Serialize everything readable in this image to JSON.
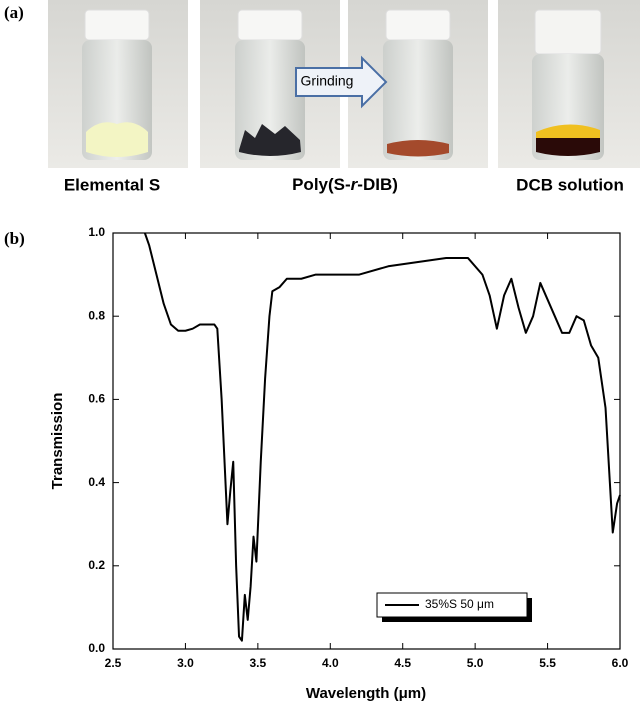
{
  "panel_a": {
    "label": "(a)",
    "arrow_text": "Grinding",
    "captions": {
      "elemental": "Elemental S",
      "polymer": [
        "Poly(S-",
        "r",
        "-DIB)"
      ],
      "solution": "DCB solution"
    }
  },
  "panel_b": {
    "label": "(b)"
  },
  "chart_data": {
    "type": "line",
    "x_label": "Wavelength (μm)",
    "y_label": "Transmission",
    "x": [
      2.72,
      2.75,
      2.8,
      2.85,
      2.9,
      2.95,
      3.0,
      3.05,
      3.1,
      3.15,
      3.2,
      3.22,
      3.25,
      3.27,
      3.29,
      3.31,
      3.33,
      3.35,
      3.37,
      3.39,
      3.41,
      3.43,
      3.45,
      3.47,
      3.49,
      3.52,
      3.55,
      3.58,
      3.6,
      3.65,
      3.7,
      3.8,
      3.9,
      4.0,
      4.2,
      4.4,
      4.6,
      4.8,
      4.95,
      5.05,
      5.1,
      5.15,
      5.2,
      5.25,
      5.3,
      5.35,
      5.4,
      5.45,
      5.5,
      5.55,
      5.6,
      5.65,
      5.7,
      5.75,
      5.8,
      5.85,
      5.9,
      5.93,
      5.95,
      5.98,
      6.0
    ],
    "series": [
      {
        "name": "35%S 50 μm",
        "color": "#000000",
        "values": [
          1.0,
          0.97,
          0.9,
          0.83,
          0.78,
          0.765,
          0.765,
          0.77,
          0.78,
          0.78,
          0.78,
          0.77,
          0.6,
          0.45,
          0.3,
          0.38,
          0.45,
          0.2,
          0.03,
          0.02,
          0.13,
          0.07,
          0.15,
          0.27,
          0.21,
          0.45,
          0.65,
          0.8,
          0.86,
          0.87,
          0.89,
          0.89,
          0.9,
          0.9,
          0.9,
          0.92,
          0.93,
          0.94,
          0.94,
          0.9,
          0.85,
          0.77,
          0.85,
          0.89,
          0.82,
          0.76,
          0.8,
          0.88,
          0.84,
          0.8,
          0.76,
          0.76,
          0.8,
          0.79,
          0.73,
          0.7,
          0.58,
          0.4,
          0.28,
          0.35,
          0.37
        ]
      }
    ],
    "xlim": [
      2.5,
      6.0
    ],
    "xticks": [
      2.5,
      {
        "value": 3,
        "label": "3.0"
      },
      3.5,
      {
        "value": 4,
        "label": "4.0"
      },
      4.5,
      {
        "value": 5,
        "label": "5.0"
      },
      5.5,
      {
        "value": 6,
        "label": "6.0"
      }
    ],
    "ylim": [
      0,
      1
    ],
    "yticks": [
      {
        "value": 0,
        "label": "0.0"
      },
      0.2,
      0.4,
      0.6,
      0.8,
      {
        "value": 1,
        "label": "1.0"
      }
    ]
  }
}
